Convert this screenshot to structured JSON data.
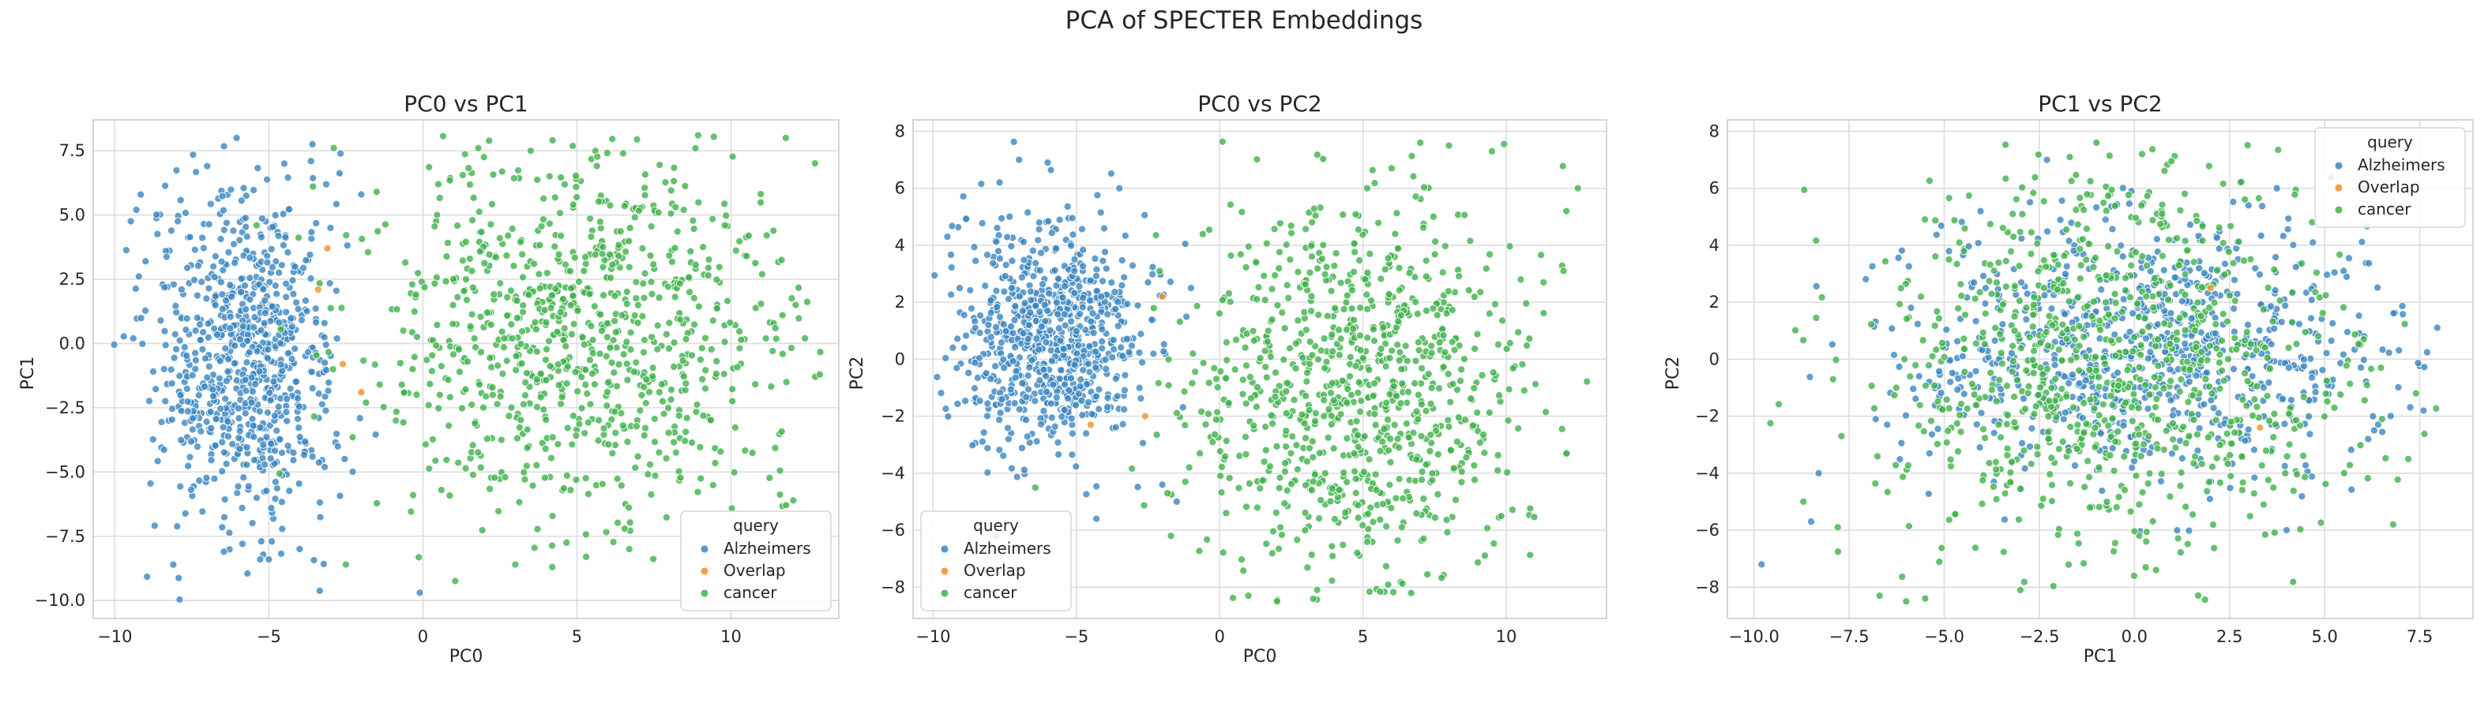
{
  "suptitle": "PCA of SPECTER Embeddings",
  "colors": {
    "Alzheimers": "#3a86c0",
    "Overlap": "#f28e2b",
    "cancer": "#3fb24a",
    "grid": "#dddddd",
    "frame": "#cccccc"
  },
  "chart_data": [
    {
      "type": "scatter",
      "title": "PC0 vs PC1",
      "xlabel": "PC0",
      "ylabel": "PC1",
      "xlim": [
        -10.7,
        13.5
      ],
      "ylim": [
        -10.7,
        8.7
      ],
      "xticks": [
        -10,
        -5,
        0,
        5,
        10
      ],
      "yticks": [
        -10.0,
        -7.5,
        -5.0,
        -2.5,
        0.0,
        2.5,
        5.0,
        7.5
      ],
      "grid": true,
      "legend": {
        "title": "query",
        "position": "lower-right",
        "entries": [
          "Alzheimers",
          "Overlap",
          "cancer"
        ]
      },
      "series": [
        {
          "name": "Alzheimers",
          "count": 800,
          "cluster": {
            "cx": -5.8,
            "cy": -0.6,
            "sx": 1.5,
            "sy": 3.3
          },
          "points": [
            [
              -9.3,
              5.2
            ],
            [
              -9.0,
              3.2
            ],
            [
              -9.4,
              0.2
            ],
            [
              -7.0,
              6.9
            ],
            [
              -4.5,
              7.0
            ],
            [
              -5.0,
              -8.4
            ],
            [
              -4.0,
              -8.0
            ],
            [
              -0.1,
              -9.7
            ],
            [
              -3.0,
              4.5
            ],
            [
              -2.0,
              5.8
            ]
          ]
        },
        {
          "name": "Overlap",
          "count": 4,
          "points": [
            [
              -3.1,
              3.7
            ],
            [
              -2.6,
              -0.8
            ],
            [
              -2.0,
              -1.9
            ],
            [
              -3.4,
              2.1
            ]
          ]
        },
        {
          "name": "cancer",
          "count": 900,
          "cluster": {
            "cx": 5.2,
            "cy": 0.4,
            "sx": 3.4,
            "sy": 3.5
          },
          "points": [
            [
              1.8,
              7.6
            ],
            [
              3.5,
              7.5
            ],
            [
              6.5,
              7.4
            ],
            [
              12.1,
              1.5
            ],
            [
              12.4,
              0.2
            ],
            [
              11.8,
              -1.5
            ],
            [
              5.3,
              -8.3
            ],
            [
              4.2,
              -8.7
            ],
            [
              6.7,
              -8.0
            ],
            [
              3.0,
              -8.6
            ],
            [
              0.6,
              -5.7
            ],
            [
              -2.5,
              -8.6
            ],
            [
              9.8,
              4.6
            ],
            [
              -1.5,
              5.9
            ]
          ]
        }
      ]
    },
    {
      "type": "scatter",
      "title": "PC0 vs PC2",
      "xlabel": "PC0",
      "ylabel": "PC2",
      "xlim": [
        -10.7,
        13.5
      ],
      "ylim": [
        -9.1,
        8.4
      ],
      "xticks": [
        -10,
        -5,
        0,
        5,
        10
      ],
      "yticks": [
        -8,
        -6,
        -4,
        -2,
        0,
        2,
        4,
        6,
        8
      ],
      "grid": true,
      "legend": {
        "title": "query",
        "position": "lower-left",
        "entries": [
          "Alzheimers",
          "Overlap",
          "cancer"
        ]
      },
      "series": [
        {
          "name": "Alzheimers",
          "count": 800,
          "cluster": {
            "cx": -5.9,
            "cy": 0.8,
            "sx": 1.6,
            "sy": 2.0
          },
          "points": [
            [
              -9.5,
              4.3
            ],
            [
              -7.0,
              7.0
            ],
            [
              -6.0,
              6.9
            ],
            [
              -3.5,
              6.0
            ],
            [
              -2.5,
              2.7
            ],
            [
              -1.0,
              2.5
            ],
            [
              -7.8,
              -6.2
            ],
            [
              -4.3,
              -5.6
            ],
            [
              -2.0,
              -4.4
            ],
            [
              -1.5,
              -5.0
            ]
          ]
        },
        {
          "name": "Overlap",
          "count": 3,
          "points": [
            [
              -2.0,
              2.2
            ],
            [
              -4.5,
              -2.3
            ],
            [
              -2.6,
              -2.0
            ]
          ]
        },
        {
          "name": "cancer",
          "count": 900,
          "cluster": {
            "cx": 4.9,
            "cy": -0.9,
            "sx": 3.0,
            "sy": 3.4
          },
          "points": [
            [
              7.0,
              7.6
            ],
            [
              8.0,
              7.5
            ],
            [
              9.5,
              7.3
            ],
            [
              12.5,
              6.0
            ],
            [
              12.1,
              5.2
            ],
            [
              12.0,
              3.1
            ],
            [
              11.3,
              2.7
            ],
            [
              1.0,
              -8.3
            ],
            [
              2.0,
              -8.5
            ],
            [
              3.4,
              -8.1
            ],
            [
              4.8,
              -6.8
            ],
            [
              -1.2,
              -4.3
            ],
            [
              -1.7,
              -6.2
            ],
            [
              6.0,
              6.7
            ]
          ]
        }
      ]
    },
    {
      "type": "scatter",
      "title": "PC1 vs PC2",
      "xlabel": "PC1",
      "ylabel": "PC2",
      "xlim": [
        -10.7,
        8.9
      ],
      "ylim": [
        -9.1,
        8.4
      ],
      "xticks": [
        -10.0,
        -7.5,
        -5.0,
        -2.5,
        0.0,
        2.5,
        5.0,
        7.5
      ],
      "yticks": [
        -8,
        -6,
        -4,
        -2,
        0,
        2,
        4,
        6,
        8
      ],
      "grid": true,
      "legend": {
        "title": "query",
        "position": "upper-right",
        "entries": [
          "Alzheimers",
          "Overlap",
          "cancer"
        ]
      },
      "series": [
        {
          "name": "Alzheimers",
          "count": 800,
          "cluster": {
            "cx": 0.3,
            "cy": 0.2,
            "sx": 3.1,
            "sy": 2.2
          },
          "points": [
            [
              -9.8,
              -7.2
            ],
            [
              -8.5,
              -5.7
            ],
            [
              -8.3,
              -4.0
            ],
            [
              -6.5,
              -2.3
            ],
            [
              6.3,
              -2.5
            ],
            [
              7.6,
              -1.8
            ],
            [
              5.5,
              3.1
            ],
            [
              3.0,
              5.4
            ],
            [
              -2.3,
              7.0
            ],
            [
              4.0,
              -6.0
            ]
          ]
        },
        {
          "name": "Overlap",
          "count": 2,
          "points": [
            [
              3.3,
              -2.4
            ],
            [
              2.0,
              2.5
            ]
          ]
        },
        {
          "name": "cancer",
          "count": 900,
          "cluster": {
            "cx": -0.5,
            "cy": -0.2,
            "sx": 3.2,
            "sy": 3.4
          },
          "points": [
            [
              -8.7,
              -5.0
            ],
            [
              -7.7,
              -2.7
            ],
            [
              -6.7,
              -8.3
            ],
            [
              -6.0,
              -8.5
            ],
            [
              -5.5,
              -8.4
            ],
            [
              -3.0,
              -8.1
            ],
            [
              -1.0,
              7.6
            ],
            [
              0.2,
              7.2
            ],
            [
              7.4,
              -1.2
            ],
            [
              7.2,
              -3.5
            ],
            [
              6.8,
              -5.8
            ],
            [
              -7.8,
              -5.9
            ],
            [
              -3.2,
              5.1
            ]
          ]
        }
      ]
    }
  ]
}
